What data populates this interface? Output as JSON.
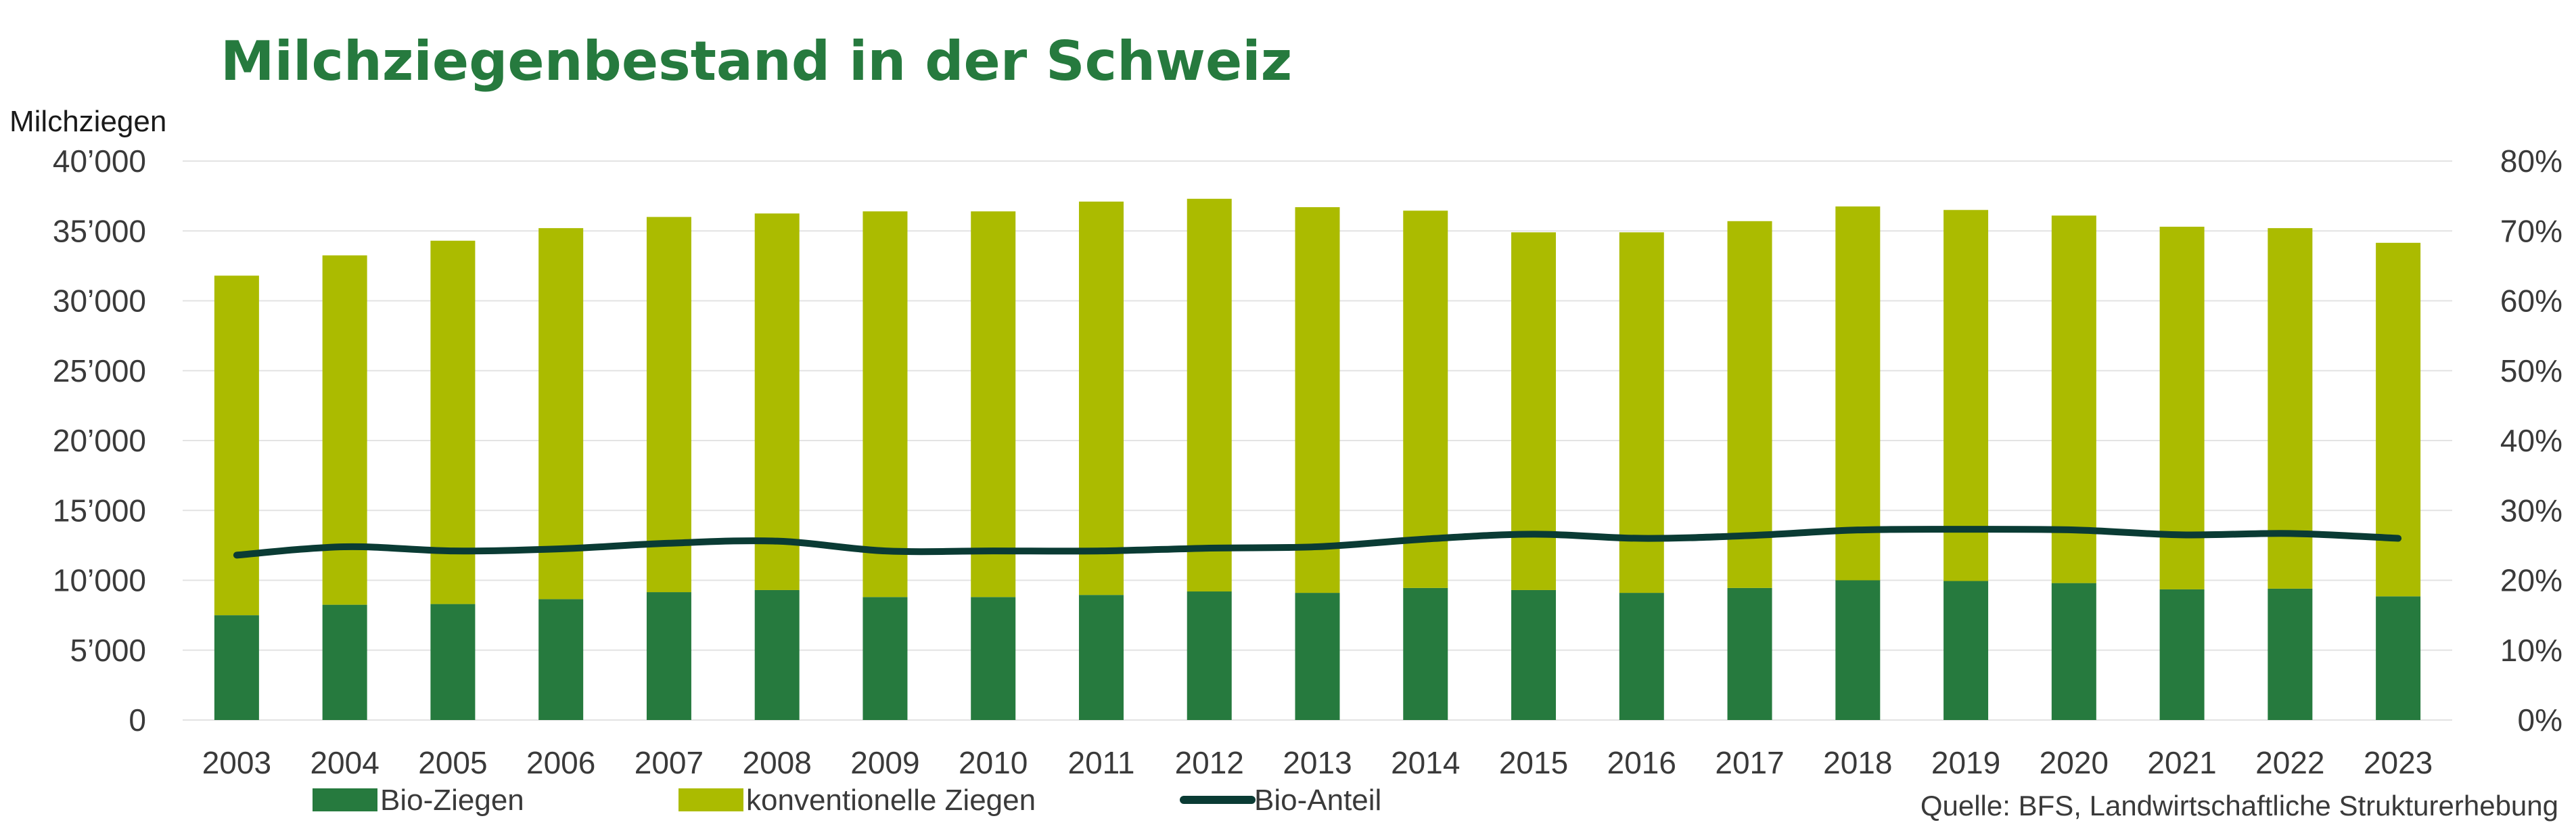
{
  "chart_data": {
    "type": "bar",
    "stacked": true,
    "title": "Milchziegenbestand in der Schweiz",
    "ylabel": "Milchziegen",
    "categories": [
      "2003",
      "2004",
      "2005",
      "2006",
      "2007",
      "2008",
      "2009",
      "2010",
      "2011",
      "2012",
      "2013",
      "2014",
      "2015",
      "2016",
      "2017",
      "2018",
      "2019",
      "2020",
      "2021",
      "2022",
      "2023"
    ],
    "series": [
      {
        "name": "Bio-Ziegen",
        "kind": "bar",
        "axis": "left",
        "color": "#267a3e",
        "values": [
          7500,
          8250,
          8300,
          8650,
          9150,
          9300,
          8800,
          8800,
          8950,
          9200,
          9100,
          9450,
          9300,
          9100,
          9450,
          10000,
          9950,
          9800,
          9350,
          9400,
          8850
        ]
      },
      {
        "name": "konventionelle Ziegen",
        "kind": "bar",
        "axis": "left",
        "color": "#abbb00",
        "values": [
          24300,
          25000,
          26000,
          26550,
          26850,
          26950,
          27600,
          27600,
          28150,
          28100,
          27600,
          27000,
          25600,
          25800,
          26250,
          26750,
          26550,
          26300,
          25950,
          25800,
          25300
        ]
      },
      {
        "name": "Bio-Anteil",
        "kind": "line",
        "axis": "right",
        "color": "#0a3b34",
        "values": [
          23.6,
          24.8,
          24.2,
          24.5,
          25.3,
          25.6,
          24.2,
          24.2,
          24.2,
          24.6,
          24.8,
          25.9,
          26.6,
          26.0,
          26.4,
          27.2,
          27.3,
          27.2,
          26.5,
          26.7,
          26.0
        ]
      }
    ],
    "ylim": [
      0,
      40000
    ],
    "yticks": [
      0,
      5000,
      10000,
      15000,
      20000,
      25000,
      30000,
      35000,
      40000
    ],
    "ytick_labels": [
      "0",
      "5’000",
      "10’000",
      "15’000",
      "20’000",
      "25’000",
      "30’000",
      "35’000",
      "40’000"
    ],
    "y2lim": [
      0,
      80
    ],
    "y2ticks": [
      0,
      10,
      20,
      30,
      40,
      50,
      60,
      70,
      80
    ],
    "y2tick_labels": [
      "0%",
      "10%",
      "20%",
      "30%",
      "40%",
      "50%",
      "60%",
      "70%",
      "80%"
    ],
    "grid": true,
    "legend_position": "bottom-left",
    "source": "Quelle: BFS, Landwirtschaftliche Strukturerhebung"
  },
  "colors": {
    "title": "#267a3e",
    "grid": "#e3e3e3",
    "bio": "#267a3e",
    "konventionell": "#abbb00",
    "line": "#0a3b34"
  }
}
